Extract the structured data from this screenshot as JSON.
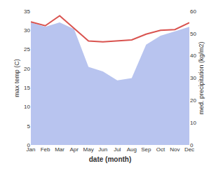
{
  "chart_data": {
    "type": "line",
    "categories": [
      "Jan",
      "Feb",
      "Mar",
      "Apr",
      "May",
      "Jun",
      "Jul",
      "Aug",
      "Sep",
      "Oct",
      "Nov",
      "Dec"
    ],
    "series": [
      {
        "type": "area",
        "axis": "y2",
        "color": "#b8c4ef",
        "values": [
          55,
          53,
          55,
          52,
          35,
          33,
          29,
          30,
          45,
          49,
          51,
          53
        ]
      },
      {
        "type": "line",
        "color": "#d9534f",
        "values": [
          32.2,
          31.2,
          33.8,
          30.5,
          27.2,
          27.0,
          27.2,
          27.5,
          29.0,
          30.0,
          30.2,
          32.0
        ]
      }
    ],
    "xlabel": "date (month)",
    "ylabel": "max temp (C)",
    "y2label": "med. precipitation (kg/m2)",
    "ylim": [
      0,
      35
    ],
    "yticks": [
      0,
      5,
      10,
      15,
      20,
      25,
      30,
      35
    ],
    "y2lim": [
      0,
      60
    ],
    "y2ticks": [
      0,
      10,
      20,
      30,
      40,
      50,
      60
    ],
    "grid": false
  }
}
